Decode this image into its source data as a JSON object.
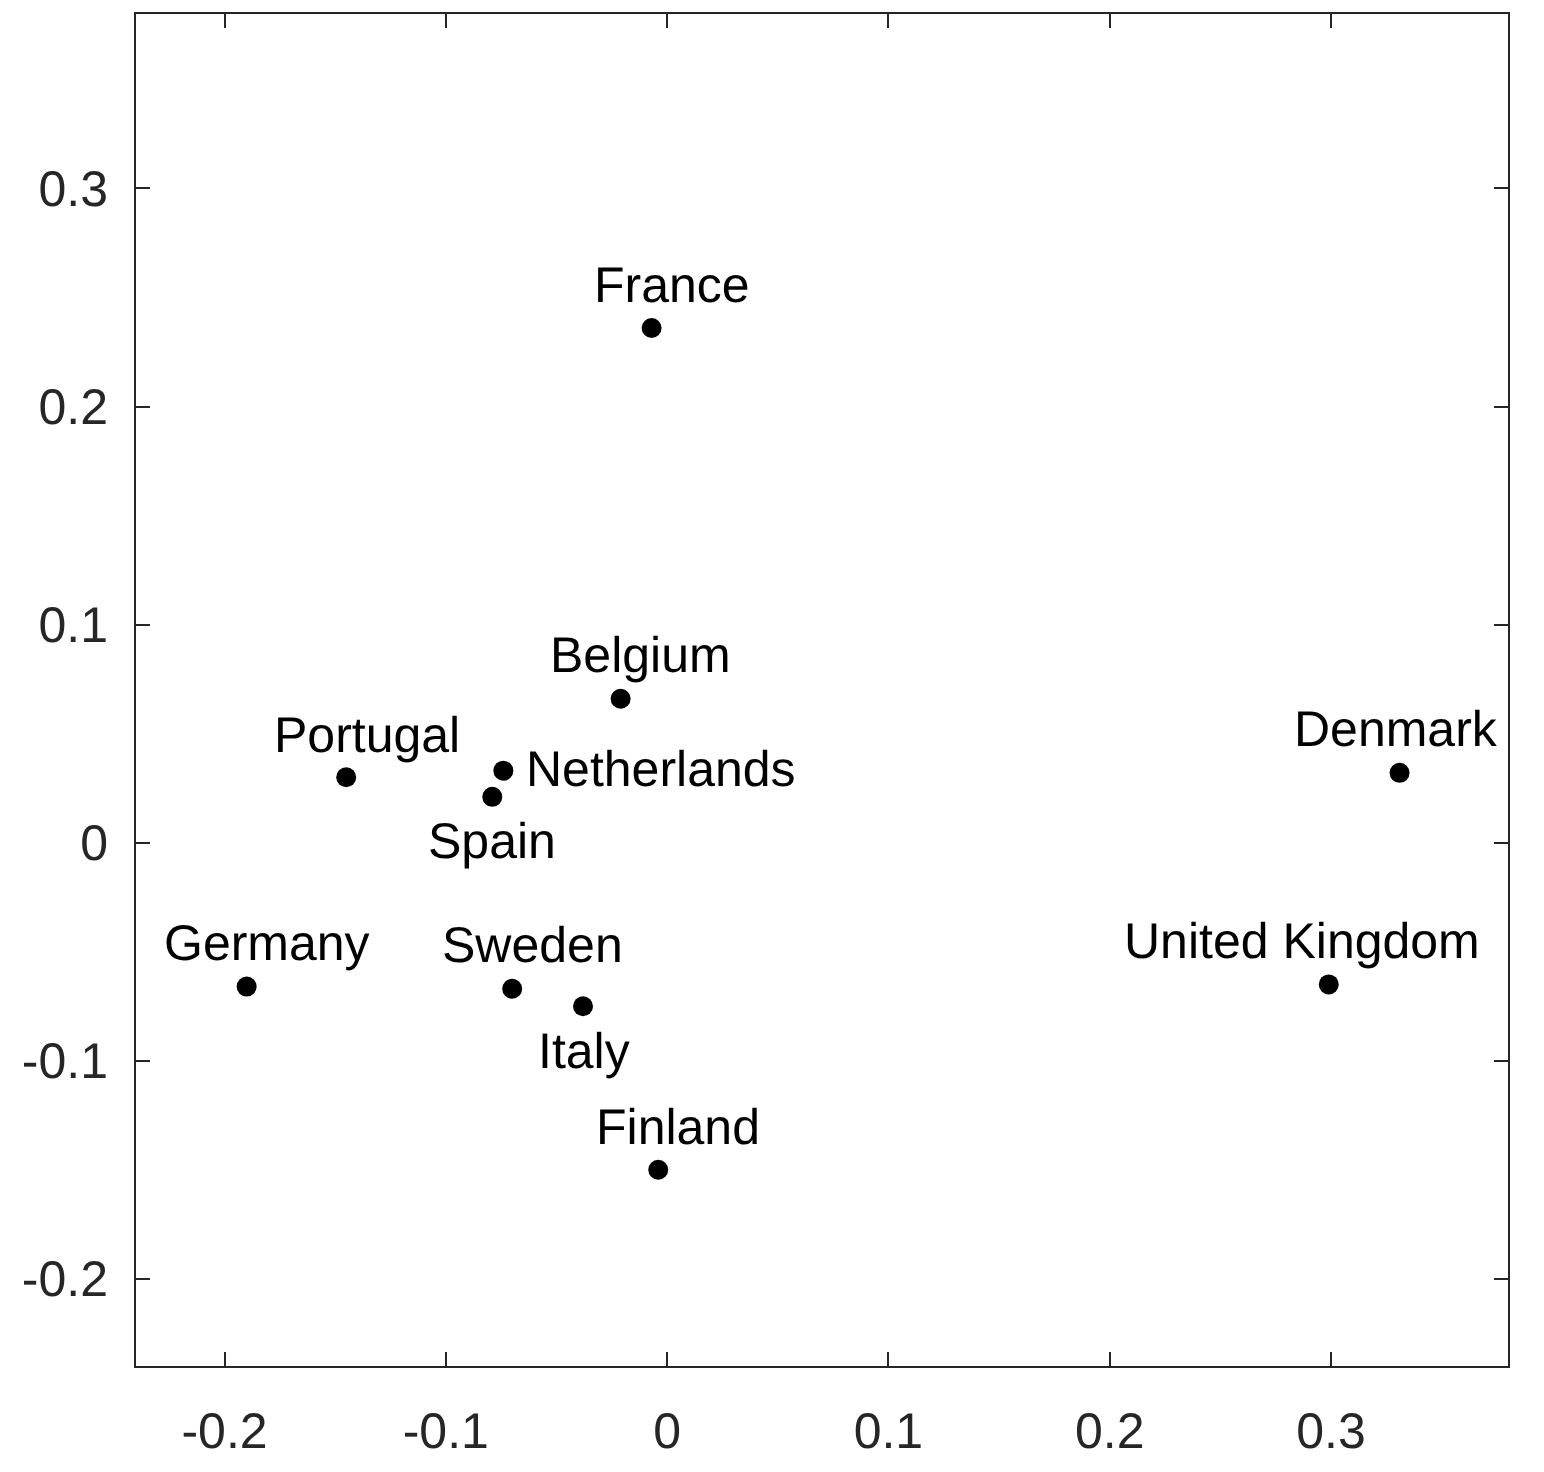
{
  "chart_data": {
    "type": "scatter",
    "x": [
      -0.007,
      -0.021,
      -0.074,
      -0.079,
      -0.145,
      -0.19,
      -0.07,
      -0.038,
      -0.004,
      0.331,
      0.299
    ],
    "series": [
      {
        "color": "#000000",
        "values": [
          0.236,
          0.066,
          0.033,
          0.021,
          0.03,
          -0.066,
          -0.067,
          -0.075,
          -0.15,
          0.032,
          -0.065
        ]
      }
    ],
    "marker": "circle",
    "xlim": [
      -0.24,
      0.38
    ],
    "ylim": [
      -0.24,
      0.38
    ],
    "xticks": [
      -0.2,
      -0.1,
      0,
      0.1,
      0.2,
      0.3
    ],
    "yticks": [
      -0.2,
      -0.1,
      0,
      0.1,
      0.2,
      0.3
    ],
    "annotations": [
      {
        "text": "France",
        "x": -0.007,
        "y": 0.236
      },
      {
        "text": "Belgium",
        "x": -0.021,
        "y": 0.066
      },
      {
        "text": "Netherlands",
        "x": -0.074,
        "y": 0.033
      },
      {
        "text": "Spain",
        "x": -0.079,
        "y": 0.021
      },
      {
        "text": "Portugal",
        "x": -0.145,
        "y": 0.03
      },
      {
        "text": "Germany",
        "x": -0.19,
        "y": -0.066
      },
      {
        "text": "Sweden",
        "x": -0.07,
        "y": -0.067
      },
      {
        "text": "Italy",
        "x": -0.038,
        "y": -0.075
      },
      {
        "text": "Finland",
        "x": -0.004,
        "y": -0.15
      },
      {
        "text": "Denmark",
        "x": 0.331,
        "y": 0.032
      },
      {
        "text": "United Kingdom",
        "x": 0.299,
        "y": -0.065
      }
    ]
  }
}
